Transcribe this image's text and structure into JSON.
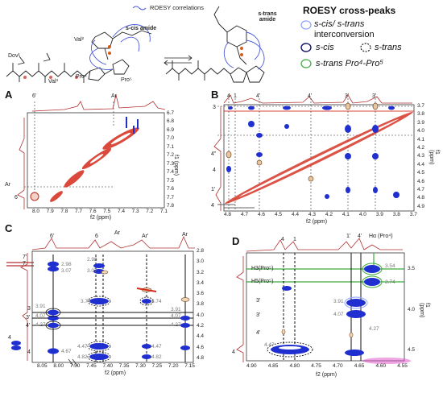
{
  "figure": {
    "scheme": {
      "roesy_label": "ROESY correlations",
      "s_cis_amide": "s-cis amide",
      "s_trans_amide": "s-trans amide",
      "residues": [
        "Dov¹",
        "Val²",
        "Val³",
        "Pro⁴",
        "Pro⁵"
      ],
      "atom_numbers": [
        "3",
        "4",
        "1",
        "2",
        "6"
      ]
    },
    "legend": {
      "title": "ROESY cross-peaks",
      "items": [
        {
          "label": "s-cis/ s-trans",
          "label2": "interconversion",
          "color": "#8aa0ff",
          "style": "ellipse"
        },
        {
          "label": "s-cis",
          "color": "#1a1a6e",
          "style": "ellipse"
        },
        {
          "label": "s-trans",
          "color": "#222222",
          "style": "dashed-ellipse"
        },
        {
          "label": "s-trans Pro⁴-Pro⁵",
          "color": "#3aaa3a",
          "style": "ellipse"
        }
      ]
    },
    "panels": {
      "A": {
        "letter": "A",
        "top_labels": [
          "6'",
          "Ar"
        ],
        "left_labels": [
          "Ar",
          "6"
        ],
        "xlabel": "f2 (ppm)",
        "ylabel": "f1 (ppm)",
        "xticks": [
          "8.0",
          "7.9",
          "7.8",
          "7.7",
          "7.6",
          "7.5",
          "7.4",
          "7.3",
          "7.2",
          "7.1"
        ],
        "yticks": [
          "6.7",
          "6.8",
          "6.9",
          "7.0",
          "7.1",
          "7.2",
          "7.3",
          "7.4",
          "7.5",
          "7.6",
          "7.7",
          "7.8"
        ]
      },
      "B": {
        "letter": "B",
        "top_labels": [
          "4",
          "1",
          "4'",
          "4'",
          "3'",
          "3'"
        ],
        "left_labels": [
          "3",
          "4\"",
          "4",
          "1'",
          "4"
        ],
        "xlabel": "f2 (ppm)",
        "ylabel": "f1 (ppm)",
        "xticks": [
          "4.8",
          "4.7",
          "4.6",
          "4.5",
          "4.4",
          "4.3",
          "4.2",
          "4.1",
          "4.0",
          "3.9",
          "3.8",
          "3.7"
        ],
        "yticks": [
          "3.7",
          "3.8",
          "3.9",
          "4.0",
          "4.1",
          "4.2",
          "4.3",
          "4.4",
          "4.5",
          "4.6",
          "4.7",
          "4.8",
          "4.9"
        ]
      },
      "C": {
        "letter": "C",
        "top_labels": [
          "6'",
          "6",
          "Ar",
          "Ar'",
          "Ar"
        ],
        "left_labels": [
          "7'",
          "7",
          "3",
          "3'",
          "4'",
          "4",
          "4"
        ],
        "xlabel": "f2 (ppm)",
        "xticks": [
          "8.05",
          "8.00",
          "7.50",
          "7.45",
          "7.40",
          "7.35",
          "7.30",
          "7.25",
          "7.20",
          "7.15"
        ],
        "yticks": [
          "2.8",
          "3.0",
          "3.2",
          "3.4",
          "3.6",
          "3.8",
          "4.0",
          "4.2",
          "4.4",
          "4.6",
          "4.8"
        ],
        "values": [
          "2.98",
          "3.07",
          "2.98",
          "3.07",
          "3.91",
          "4.07",
          "4.27",
          "3.74",
          "3.74",
          "4.67",
          "4.47",
          "4.82",
          "4.47",
          "4.82",
          "4.07",
          "4.27",
          "3.91"
        ]
      },
      "D": {
        "letter": "D",
        "top_labels": [
          "4",
          "1",
          "1'",
          "4'",
          "Hα (Pro⁴)"
        ],
        "left_labels": [
          "H3(Pro⁵)",
          "H5(Pro⁵)",
          "3'",
          "3'",
          "4'",
          "4"
        ],
        "xlabel": "f2 (ppm)",
        "ylabel": "f1 (ppm)",
        "xticks": [
          "4.90",
          "4.85",
          "4.80",
          "4.75",
          "4.70",
          "4.65",
          "4.60",
          "4.55"
        ],
        "yticks": [
          "3.5",
          "4.0",
          "4.5"
        ],
        "values": [
          "3.54",
          "3.74",
          "3.91",
          "4.07",
          "4.27",
          "4.47"
        ]
      }
    }
  }
}
